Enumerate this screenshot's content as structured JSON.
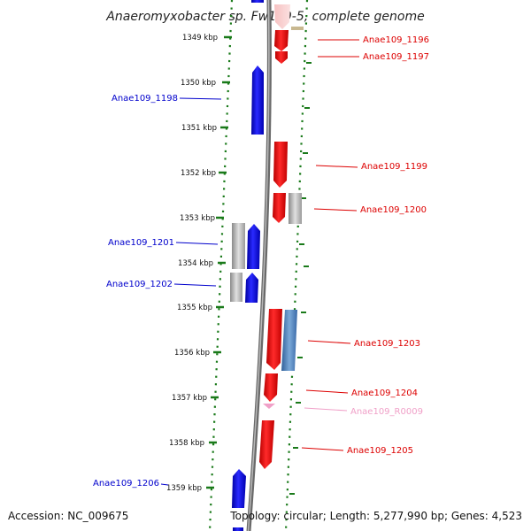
{
  "title": "Anaeromyxobacter sp. Fw109-5, complete genome",
  "footer": {
    "accession": "Accession: NC_009675",
    "topology": "Topology: circular; Length: 5,277,990 bp; Genes: 4,523"
  },
  "colors": {
    "forward_gene": "#ee0000",
    "reverse_gene": "#0000ee",
    "ncrna": "#f0a0c8",
    "pseudo_or_other": "#b0b0b0",
    "steelblue_feature": "#4a7ab8",
    "tick_green": "#1a7a1a",
    "backbone": "#888888"
  },
  "ruler": {
    "labels": [
      "1349 kbp",
      "1350 kbp",
      "1351 kbp",
      "1352 kbp",
      "1353 kbp",
      "1354 kbp",
      "1355 kbp",
      "1356 kbp",
      "1357 kbp",
      "1358 kbp",
      "1359 kbp"
    ]
  },
  "genes": {
    "right": [
      {
        "label": "Anae109_1196",
        "color": "#dd0000"
      },
      {
        "label": "Anae109_1197",
        "color": "#dd0000"
      },
      {
        "label": "Anae109_1199",
        "color": "#dd0000"
      },
      {
        "label": "Anae109_1200",
        "color": "#dd0000"
      },
      {
        "label": "Anae109_1203",
        "color": "#dd0000"
      },
      {
        "label": "Anae109_1204",
        "color": "#dd0000"
      },
      {
        "label": "Anae109_R0009",
        "color": "#f0a0c8"
      },
      {
        "label": "Anae109_1205",
        "color": "#dd0000"
      }
    ],
    "left": [
      {
        "label": "Anae109_1198",
        "color": "#0000cc"
      },
      {
        "label": "Anae109_1201",
        "color": "#0000cc"
      },
      {
        "label": "Anae109_1202",
        "color": "#0000cc"
      },
      {
        "label": "Anae109_1206",
        "color": "#0000cc"
      }
    ]
  }
}
